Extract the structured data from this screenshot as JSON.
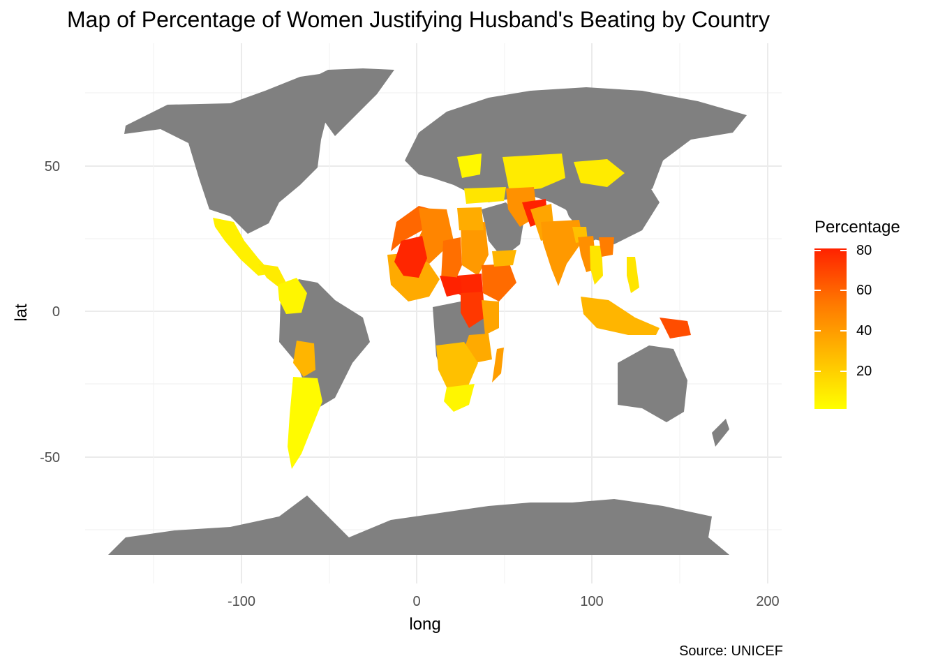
{
  "title": "Map of Percentage of Women Justifying Husband's Beating by Country",
  "caption": "Source: UNICEF",
  "colors": {
    "no_data": "#808080",
    "low": "#ffff00",
    "mid": "#ffb000",
    "high": "#ff2200",
    "grid": "#ebebeb"
  },
  "chart_data": {
    "type": "choropleth",
    "title": "Map of Percentage of Women Justifying Husband's Beating by Country",
    "xlabel": "long",
    "ylabel": "lat",
    "x_ticks": [
      "-100",
      "0",
      "100",
      "200"
    ],
    "y_ticks": [
      "50",
      "0",
      "-50"
    ],
    "xlim": [
      -185,
      210
    ],
    "ylim": [
      -90,
      85
    ],
    "legend": {
      "title": "Percentage",
      "labels": [
        "80",
        "60",
        "40",
        "20"
      ],
      "range": [
        1,
        80
      ],
      "placement": "right"
    },
    "caption": "Source: UNICEF",
    "regions": [
      {
        "name": "Mexico",
        "value": 8
      },
      {
        "name": "Central America",
        "value": 10
      },
      {
        "name": "Colombia",
        "value": 5
      },
      {
        "name": "Bolivia",
        "value": 35
      },
      {
        "name": "Argentina",
        "value": 3
      },
      {
        "name": "Morocco",
        "value": 64
      },
      {
        "name": "Algeria",
        "value": 55
      },
      {
        "name": "West Africa",
        "value": 40
      },
      {
        "name": "Mali",
        "value": 79
      },
      {
        "name": "Chad",
        "value": 62
      },
      {
        "name": "Sudan",
        "value": 47
      },
      {
        "name": "South Sudan",
        "value": 79
      },
      {
        "name": "Ethiopia",
        "value": 63
      },
      {
        "name": "Central African Republic",
        "value": 80
      },
      {
        "name": "DR Congo",
        "value": 75
      },
      {
        "name": "Kenya",
        "value": 42
      },
      {
        "name": "Tanzania",
        "value": 40
      },
      {
        "name": "Southern Africa",
        "value": 30
      },
      {
        "name": "South Africa",
        "value": 5
      },
      {
        "name": "Madagascar",
        "value": 45
      },
      {
        "name": "Ukraine",
        "value": 4
      },
      {
        "name": "Turkey",
        "value": 13
      },
      {
        "name": "Egypt",
        "value": 39
      },
      {
        "name": "Central Asia",
        "value": 10
      },
      {
        "name": "Mongolia",
        "value": 10
      },
      {
        "name": "Iran",
        "value": 50
      },
      {
        "name": "Afghanistan",
        "value": 80
      },
      {
        "name": "Pakistan",
        "value": 42
      },
      {
        "name": "India",
        "value": 47
      },
      {
        "name": "Bangladesh",
        "value": 30
      },
      {
        "name": "Myanmar",
        "value": 51
      },
      {
        "name": "Thailand",
        "value": 13
      },
      {
        "name": "Laos",
        "value": 58
      },
      {
        "name": "Philippines",
        "value": 13
      },
      {
        "name": "Indonesia",
        "value": 35
      },
      {
        "name": "Papua New Guinea",
        "value": 70
      },
      {
        "name": "Yemen",
        "value": 35
      }
    ]
  }
}
